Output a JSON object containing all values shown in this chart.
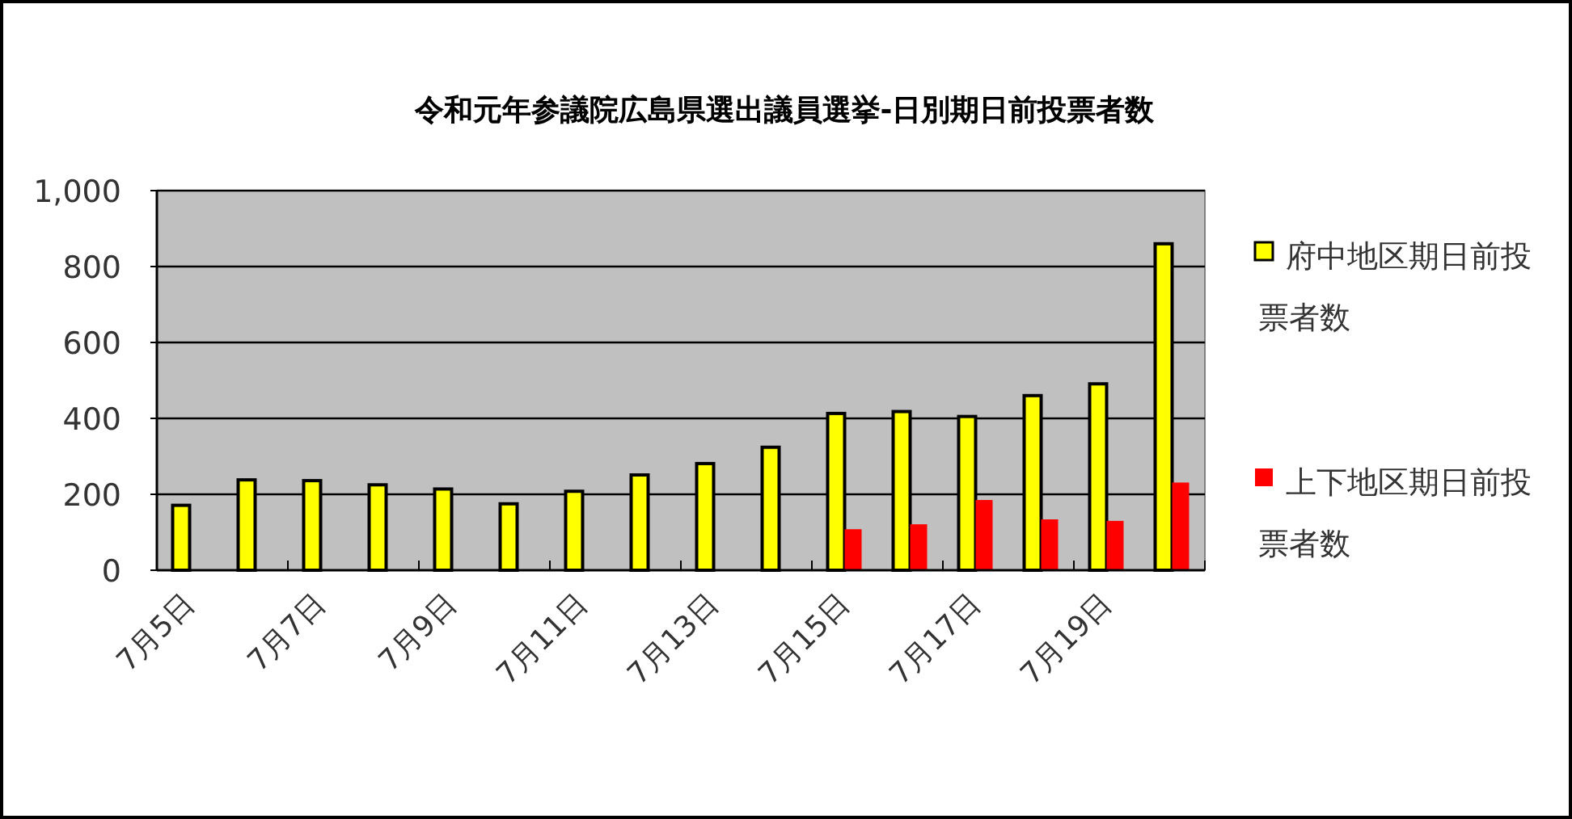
{
  "chart_data": {
    "type": "bar",
    "title": "令和元年参議院広島県選出議員選挙-日別期日前投票者数",
    "categories": [
      "7月5日",
      null,
      "7月7日",
      null,
      "7月9日",
      null,
      "7月11日",
      null,
      "7月13日",
      null,
      "7月15日",
      null,
      "7月17日",
      null,
      "7月19日",
      null
    ],
    "series": [
      {
        "name": "府中地区期日前投票者数",
        "color": "#ffff00",
        "values": [
          171,
          238,
          236,
          225,
          214,
          175,
          208,
          251,
          281,
          324,
          413,
          418,
          405,
          460,
          491,
          860
        ]
      },
      {
        "name": "上下地区期日前投票者数",
        "color": "#ff0000",
        "values": [
          null,
          null,
          null,
          null,
          null,
          null,
          null,
          null,
          null,
          null,
          108,
          121,
          185,
          134,
          130,
          231
        ]
      }
    ],
    "ylim": [
      0,
      1000
    ],
    "yticks": [
      0,
      200,
      400,
      600,
      800,
      {
        "value": 1000,
        "label": "1,000"
      }
    ],
    "grid": "y",
    "legend": "right"
  }
}
